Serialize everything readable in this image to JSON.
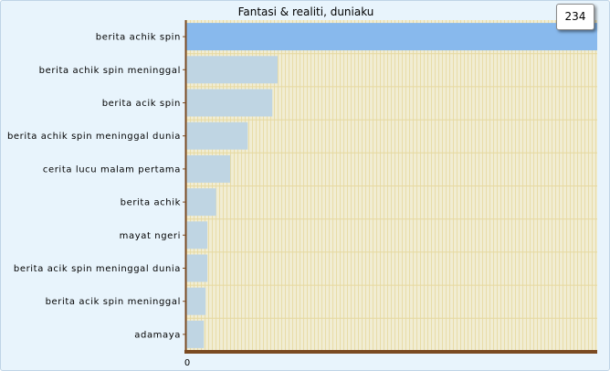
{
  "chart_data": {
    "type": "bar",
    "orientation": "horizontal",
    "title": "Fantasi & realiti, duniaku",
    "categories": [
      "berita achik spin",
      "berita achik spin meninggal",
      "berita acik spin",
      "berita achik spin meninggal dunia",
      "cerita lucu malam pertama",
      "berita achik",
      "mayat ngeri",
      "berita acik spin meninggal dunia",
      "berita acik spin meninggal",
      "adamaya"
    ],
    "values": [
      234,
      52,
      49,
      35,
      25,
      17,
      12,
      12,
      11,
      10
    ],
    "xlim": [
      0,
      234
    ],
    "x_tick_labels": [
      "0"
    ],
    "highlighted_index": 0,
    "tooltip_value": "234",
    "grid": true,
    "colors": {
      "bar": "#bfd5e3",
      "bar_highlight": "#88b9ed",
      "plot_background": "#f1edd3",
      "grid_line": "#e6d8a0",
      "axis": "#7a4a22",
      "frame_background": "#e8f4fc"
    }
  }
}
